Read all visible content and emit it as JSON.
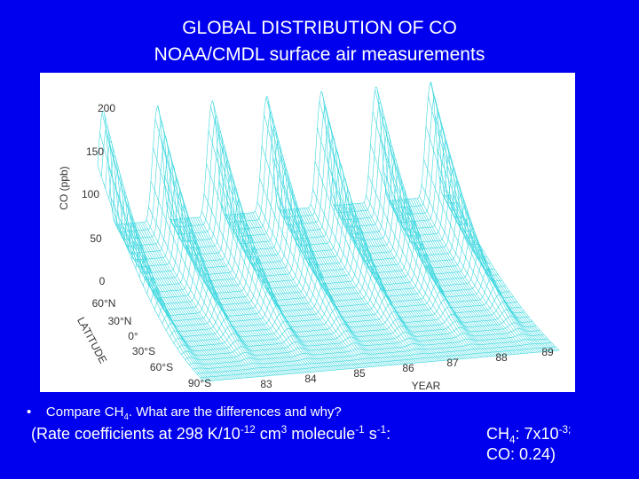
{
  "header": {
    "title_lines": [
      "GLOBAL DISTRIBUTION OF CO",
      "NOAA/CMDL surface air measurements"
    ]
  },
  "figure": {
    "y_label": "CO (ppb)",
    "y_ticks": [
      "200",
      "150",
      "100",
      "50",
      "0"
    ],
    "latitude_label": "LATITUDE",
    "latitude_ticks": [
      "60°N",
      "30°N",
      "0°",
      "30°S",
      "60°S",
      "90°S"
    ],
    "year_label": "YEAR",
    "year_ticks": [
      "83",
      "84",
      "85",
      "86",
      "87",
      "88",
      "89"
    ]
  },
  "bullets": [
    {
      "parts": [
        "Compare CH",
        "4",
        ". What are the differences and why?"
      ]
    }
  ],
  "rate_line": {
    "parts": [
      "(Rate coefficients at 298 K/10",
      "-12",
      " cm",
      "3",
      " molecule",
      "-1",
      " s",
      "-1",
      ":"
    ]
  },
  "values_note": {
    "line1": [
      "CH",
      "4",
      ": 7x10",
      "-3;"
    ],
    "line2": "CO: 0.24)"
  }
}
